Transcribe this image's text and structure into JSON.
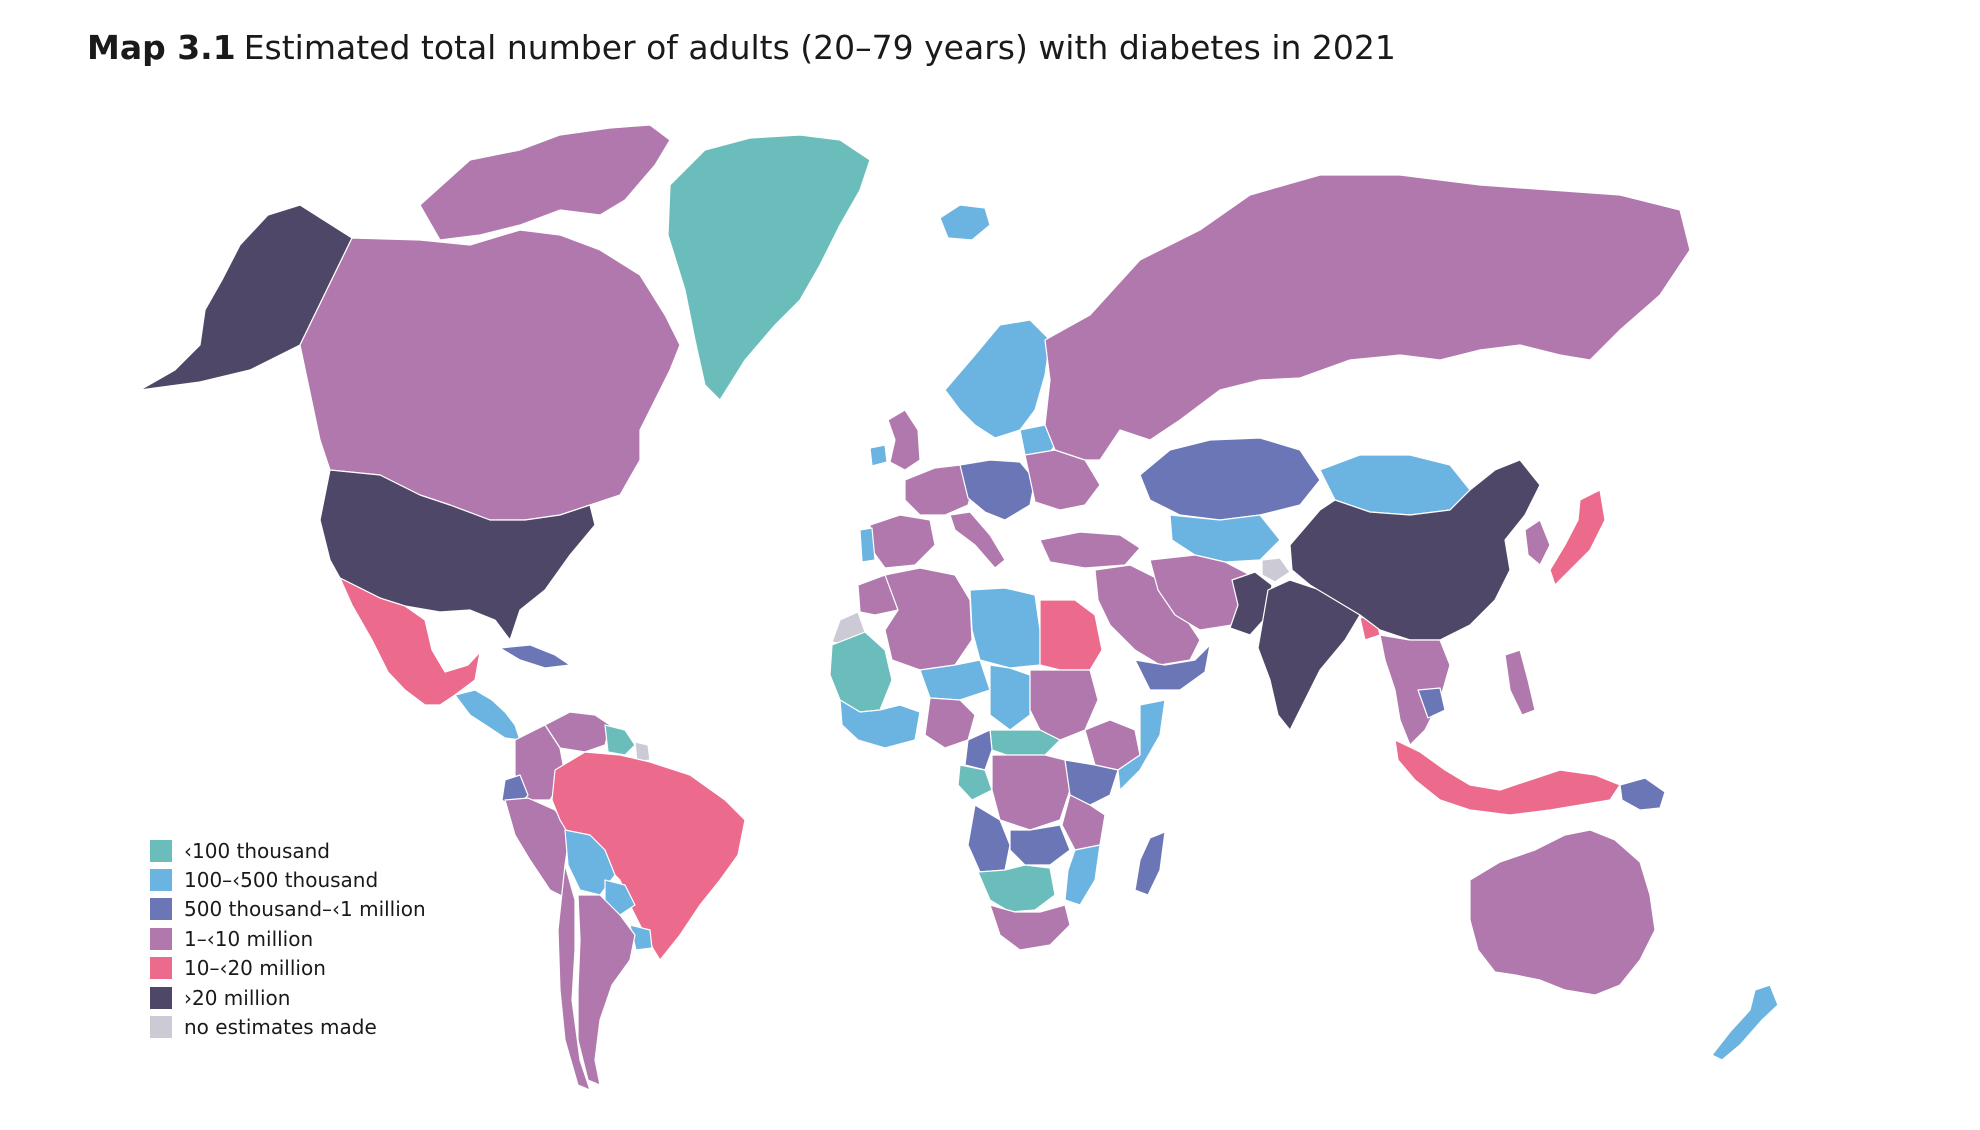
{
  "title": {
    "label": "Map 3.1",
    "text": "Estimated total number of adults (20–79 years) with diabetes in 2021"
  },
  "colors": {
    "lt100k": "#6bbdbb",
    "100k_500k": "#6bb3e0",
    "500k_1m": "#6a76b6",
    "1m_10m": "#b078ad",
    "10m_20m": "#ec6a8c",
    "gt20m": "#4f4767",
    "no_estimate": "#cccad4"
  },
  "legend": {
    "items": [
      {
        "label": "‹100 thousand",
        "color": "#6bbdbb"
      },
      {
        "label": "100–‹500 thousand",
        "color": "#6bb3e0"
      },
      {
        "label": "500 thousand–‹1 million",
        "color": "#6a76b6"
      },
      {
        "label": "1–‹10 million",
        "color": "#b078ad"
      },
      {
        "label": "10–‹20 million",
        "color": "#ec6a8c"
      },
      {
        "label": "›20 million",
        "color": "#4f4767"
      },
      {
        "label": "no estimates made",
        "color": "#cccad4"
      }
    ]
  },
  "regions": [
    {
      "id": "alaska",
      "category": "gt20m"
    },
    {
      "id": "canada",
      "category": "1m_10m"
    },
    {
      "id": "canada-arctic-islands",
      "category": "1m_10m"
    },
    {
      "id": "greenland",
      "category": "lt100k"
    },
    {
      "id": "iceland",
      "category": "100k_500k"
    },
    {
      "id": "united-states",
      "category": "gt20m"
    },
    {
      "id": "mexico",
      "category": "10m_20m"
    },
    {
      "id": "central-america",
      "category": "100k_500k"
    },
    {
      "id": "cuba",
      "category": "500k_1m"
    },
    {
      "id": "colombia",
      "category": "1m_10m"
    },
    {
      "id": "venezuela",
      "category": "1m_10m"
    },
    {
      "id": "ecuador",
      "category": "500k_1m"
    },
    {
      "id": "guiana-region",
      "category": "lt100k"
    },
    {
      "id": "french-guiana",
      "category": "no_estimate"
    },
    {
      "id": "peru",
      "category": "1m_10m"
    },
    {
      "id": "brazil",
      "category": "10m_20m"
    },
    {
      "id": "bolivia",
      "category": "100k_500k"
    },
    {
      "id": "paraguay",
      "category": "100k_500k"
    },
    {
      "id": "uruguay",
      "category": "100k_500k"
    },
    {
      "id": "chile",
      "category": "1m_10m"
    },
    {
      "id": "argentina",
      "category": "1m_10m"
    },
    {
      "id": "western-sahara",
      "category": "no_estimate"
    },
    {
      "id": "mauritania-mali",
      "category": "lt100k"
    },
    {
      "id": "morocco",
      "category": "1m_10m"
    },
    {
      "id": "algeria",
      "category": "1m_10m"
    },
    {
      "id": "libya",
      "category": "100k_500k"
    },
    {
      "id": "egypt",
      "category": "10m_20m"
    },
    {
      "id": "niger",
      "category": "100k_500k"
    },
    {
      "id": "chad",
      "category": "100k_500k"
    },
    {
      "id": "west-africa",
      "category": "100k_500k"
    },
    {
      "id": "nigeria",
      "category": "1m_10m"
    },
    {
      "id": "sudan",
      "category": "1m_10m"
    },
    {
      "id": "ethiopia",
      "category": "1m_10m"
    },
    {
      "id": "somalia",
      "category": "100k_500k"
    },
    {
      "id": "central-african-republic",
      "category": "lt100k"
    },
    {
      "id": "cameroon",
      "category": "500k_1m"
    },
    {
      "id": "gabon-congo",
      "category": "lt100k"
    },
    {
      "id": "dr-congo",
      "category": "1m_10m"
    },
    {
      "id": "kenya",
      "category": "500k_1m"
    },
    {
      "id": "tanzania",
      "category": "1m_10m"
    },
    {
      "id": "angola",
      "category": "500k_1m"
    },
    {
      "id": "zambia",
      "category": "500k_1m"
    },
    {
      "id": "mozambique",
      "category": "100k_500k"
    },
    {
      "id": "namibia-botswana",
      "category": "lt100k"
    },
    {
      "id": "south-africa",
      "category": "1m_10m"
    },
    {
      "id": "madagascar",
      "category": "500k_1m"
    },
    {
      "id": "scandinavia",
      "category": "100k_500k"
    },
    {
      "id": "uk",
      "category": "1m_10m"
    },
    {
      "id": "ireland",
      "category": "100k_500k"
    },
    {
      "id": "western-europe",
      "category": "1m_10m"
    },
    {
      "id": "iberia",
      "category": "1m_10m"
    },
    {
      "id": "portugal",
      "category": "100k_500k"
    },
    {
      "id": "italy",
      "category": "1m_10m"
    },
    {
      "id": "central-europe",
      "category": "500k_1m"
    },
    {
      "id": "eastern-europe",
      "category": "1m_10m"
    },
    {
      "id": "baltics",
      "category": "100k_500k"
    },
    {
      "id": "turkey",
      "category": "1m_10m"
    },
    {
      "id": "middle-east",
      "category": "1m_10m"
    },
    {
      "id": "yemen-oman",
      "category": "500k_1m"
    },
    {
      "id": "russia",
      "category": "1m_10m"
    },
    {
      "id": "kazakhstan",
      "category": "500k_1m"
    },
    {
      "id": "central-asia",
      "category": "100k_500k"
    },
    {
      "id": "iran-afghanistan",
      "category": "1m_10m"
    },
    {
      "id": "pakistan",
      "category": "gt20m"
    },
    {
      "id": "india",
      "category": "gt20m"
    },
    {
      "id": "kashmir",
      "category": "no_estimate"
    },
    {
      "id": "bangladesh",
      "category": "10m_20m"
    },
    {
      "id": "mongolia",
      "category": "100k_500k"
    },
    {
      "id": "china",
      "category": "gt20m"
    },
    {
      "id": "korea",
      "category": "1m_10m"
    },
    {
      "id": "japan",
      "category": "10m_20m"
    },
    {
      "id": "southeast-asia-mainland",
      "category": "1m_10m"
    },
    {
      "id": "cambodia",
      "category": "500k_1m"
    },
    {
      "id": "philippines",
      "category": "1m_10m"
    },
    {
      "id": "indonesia",
      "category": "10m_20m"
    },
    {
      "id": "papua-new-guinea",
      "category": "500k_1m"
    },
    {
      "id": "australia",
      "category": "1m_10m"
    },
    {
      "id": "new-zealand",
      "category": "100k_500k"
    }
  ]
}
